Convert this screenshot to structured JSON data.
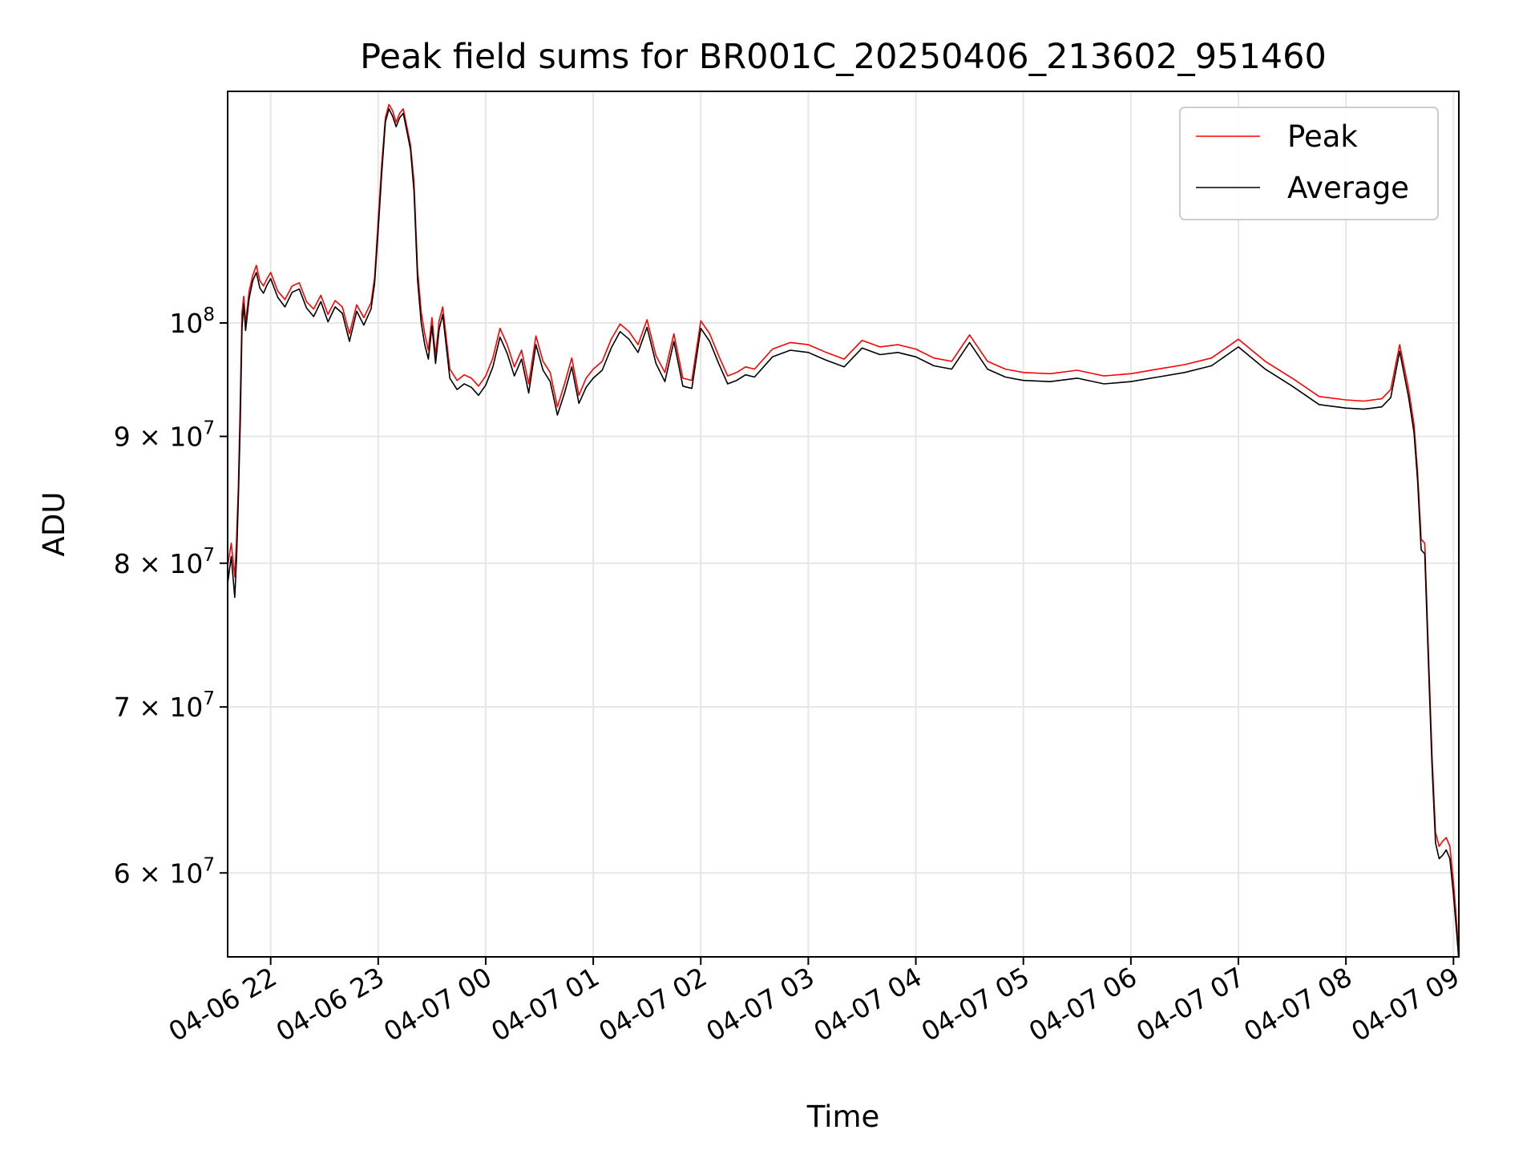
{
  "chart_data": {
    "type": "line",
    "title": "Peak field sums for BR001C_20250406_213602_951460",
    "xlabel": "Time",
    "ylabel": "ADU",
    "y_scale": "log",
    "x_start": "04-06 21:36",
    "x_end": "04-07 09:03",
    "xlim": [
      "04-06 21:36",
      "04-07 09:03"
    ],
    "ylim": [
      55500000,
      124000000
    ],
    "grid": true,
    "legend_position": "top-right",
    "x_ticks": [
      "04-06 22",
      "04-06 23",
      "04-07 00",
      "04-07 01",
      "04-07 02",
      "04-07 03",
      "04-07 04",
      "04-07 05",
      "04-07 06",
      "04-07 07",
      "04-07 08",
      "04-07 09"
    ],
    "y_ticks": [
      {
        "value": 60000000,
        "mantissa": "6",
        "base": "10",
        "exp": "7"
      },
      {
        "value": 70000000,
        "mantissa": "7",
        "base": "10",
        "exp": "7"
      },
      {
        "value": 80000000,
        "mantissa": "8",
        "base": "10",
        "exp": "7"
      },
      {
        "value": 90000000,
        "mantissa": "9",
        "base": "10",
        "exp": "7"
      },
      {
        "value": 100000000,
        "mantissa": "",
        "base": "10",
        "exp": "8"
      }
    ],
    "x": [
      "04-06 21:36",
      "04-06 21:38",
      "04-06 21:40",
      "04-06 21:41",
      "04-06 21:42",
      "04-06 21:43",
      "04-06 21:44",
      "04-06 21:45",
      "04-06 21:46",
      "04-06 21:48",
      "04-06 21:50",
      "04-06 21:52",
      "04-06 21:54",
      "04-06 21:56",
      "04-06 21:58",
      "04-06 22:00",
      "04-06 22:04",
      "04-06 22:08",
      "04-06 22:12",
      "04-06 22:16",
      "04-06 22:20",
      "04-06 22:24",
      "04-06 22:28",
      "04-06 22:32",
      "04-06 22:36",
      "04-06 22:40",
      "04-06 22:44",
      "04-06 22:48",
      "04-06 22:52",
      "04-06 22:56",
      "04-06 22:58",
      "04-06 23:00",
      "04-06 23:02",
      "04-06 23:04",
      "04-06 23:06",
      "04-06 23:08",
      "04-06 23:10",
      "04-06 23:12",
      "04-06 23:14",
      "04-06 23:16",
      "04-06 23:18",
      "04-06 23:20",
      "04-06 23:22",
      "04-06 23:24",
      "04-06 23:26",
      "04-06 23:28",
      "04-06 23:30",
      "04-06 23:32",
      "04-06 23:34",
      "04-06 23:36",
      "04-06 23:40",
      "04-06 23:44",
      "04-06 23:48",
      "04-06 23:52",
      "04-06 23:56",
      "04-07 00:00",
      "04-07 00:04",
      "04-07 00:08",
      "04-07 00:12",
      "04-07 00:16",
      "04-07 00:20",
      "04-07 00:24",
      "04-07 00:28",
      "04-07 00:32",
      "04-07 00:36",
      "04-07 00:40",
      "04-07 00:44",
      "04-07 00:48",
      "04-07 00:52",
      "04-07 00:56",
      "04-07 01:00",
      "04-07 01:05",
      "04-07 01:10",
      "04-07 01:15",
      "04-07 01:20",
      "04-07 01:25",
      "04-07 01:30",
      "04-07 01:35",
      "04-07 01:40",
      "04-07 01:45",
      "04-07 01:50",
      "04-07 01:55",
      "04-07 02:00",
      "04-07 02:05",
      "04-07 02:10",
      "04-07 02:15",
      "04-07 02:20",
      "04-07 02:25",
      "04-07 02:30",
      "04-07 02:40",
      "04-07 02:50",
      "04-07 03:00",
      "04-07 03:10",
      "04-07 03:20",
      "04-07 03:30",
      "04-07 03:40",
      "04-07 03:50",
      "04-07 04:00",
      "04-07 04:10",
      "04-07 04:20",
      "04-07 04:30",
      "04-07 04:40",
      "04-07 04:50",
      "04-07 05:00",
      "04-07 05:15",
      "04-07 05:30",
      "04-07 05:45",
      "04-07 06:00",
      "04-07 06:15",
      "04-07 06:30",
      "04-07 06:45",
      "04-07 07:00",
      "04-07 07:15",
      "04-07 07:30",
      "04-07 07:45",
      "04-07 08:00",
      "04-07 08:10",
      "04-07 08:20",
      "04-07 08:25",
      "04-07 08:30",
      "04-07 08:35",
      "04-07 08:38",
      "04-07 08:40",
      "04-07 08:42",
      "04-07 08:44",
      "04-07 08:46",
      "04-07 08:48",
      "04-07 08:50",
      "04-07 08:52",
      "04-07 08:54",
      "04-07 08:56",
      "04-07 08:58",
      "04-07 09:00",
      "04-07 09:02",
      "04-07 09:03"
    ],
    "series": [
      {
        "name": "Peak",
        "color": "#ff0000",
        "values": [
          79800000,
          81500000,
          79000000,
          82000000,
          86000000,
          93000000,
          101000000,
          102500000,
          100000000,
          103000000,
          104500000,
          105500000,
          104000000,
          103500000,
          104200000,
          104800000,
          103000000,
          102200000,
          103500000,
          103800000,
          102000000,
          101300000,
          102600000,
          100800000,
          102100000,
          101500000,
          99000000,
          101700000,
          100500000,
          101900000,
          104300000,
          110000000,
          116000000,
          121000000,
          122500000,
          121800000,
          120500000,
          121500000,
          122000000,
          120000000,
          118000000,
          114000000,
          105000000,
          101000000,
          99000000,
          97500000,
          100500000,
          97000000,
          100200000,
          101500000,
          95800000,
          94800000,
          95300000,
          95000000,
          94300000,
          95200000,
          96800000,
          99500000,
          98000000,
          96000000,
          97500000,
          94500000,
          98800000,
          96500000,
          95500000,
          92500000,
          94500000,
          96800000,
          93500000,
          95000000,
          95800000,
          96500000,
          98500000,
          99900000,
          99200000,
          98000000,
          100300000,
          97000000,
          95500000,
          99000000,
          95000000,
          94800000,
          100200000,
          99000000,
          97000000,
          95200000,
          95500000,
          96000000,
          95800000,
          97600000,
          98200000,
          98000000,
          97300000,
          96700000,
          98400000,
          97800000,
          98000000,
          97600000,
          96800000,
          96500000,
          98900000,
          96500000,
          95800000,
          95500000,
          95400000,
          95700000,
          95200000,
          95400000,
          95800000,
          96200000,
          96800000,
          98500000,
          96500000,
          95000000,
          93400000,
          93100000,
          93000000,
          93200000,
          94000000,
          98000000,
          94000000,
          91000000,
          87000000,
          81800000,
          81500000,
          73800000,
          67000000,
          62300000,
          61500000,
          61800000,
          62000000,
          61500000,
          59500000,
          57000000,
          55500000
        ]
      },
      {
        "name": "Average",
        "color": "#000000",
        "values": [
          78500000,
          80500000,
          77500000,
          80500000,
          85000000,
          91000000,
          99500000,
          101800000,
          99300000,
          102300000,
          104000000,
          104800000,
          103300000,
          102800000,
          103600000,
          104200000,
          102400000,
          101500000,
          102900000,
          103200000,
          101400000,
          100600000,
          102000000,
          100100000,
          101500000,
          100900000,
          98300000,
          101100000,
          99800000,
          101300000,
          103700000,
          109000000,
          115000000,
          120500000,
          122000000,
          121200000,
          120000000,
          121000000,
          121500000,
          119500000,
          117500000,
          113000000,
          104000000,
          100000000,
          98000000,
          96700000,
          99700000,
          96300000,
          99400000,
          100800000,
          95000000,
          94000000,
          94500000,
          94200000,
          93500000,
          94400000,
          96000000,
          98700000,
          97200000,
          95200000,
          96700000,
          93700000,
          98000000,
          95700000,
          94700000,
          91800000,
          93700000,
          96000000,
          92800000,
          94200000,
          95000000,
          95700000,
          97700000,
          99200000,
          98500000,
          97300000,
          99600000,
          96300000,
          94700000,
          98300000,
          94300000,
          94100000,
          99500000,
          98300000,
          96300000,
          94500000,
          94800000,
          95300000,
          95100000,
          96900000,
          97500000,
          97300000,
          96600000,
          96000000,
          97700000,
          97100000,
          97300000,
          96900000,
          96100000,
          95800000,
          98200000,
          95800000,
          95100000,
          94800000,
          94700000,
          95000000,
          94500000,
          94700000,
          95100000,
          95500000,
          96100000,
          97800000,
          95800000,
          94300000,
          92700000,
          92400000,
          92300000,
          92500000,
          93300000,
          97400000,
          93300000,
          90300000,
          86300000,
          81000000,
          80700000,
          73000000,
          66300000,
          61700000,
          60800000,
          61000000,
          61300000,
          60800000,
          58800000,
          56500000,
          55300000
        ]
      }
    ]
  }
}
